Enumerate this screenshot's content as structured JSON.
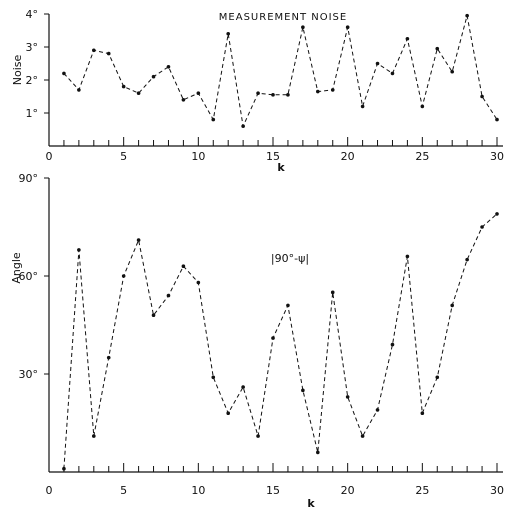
{
  "chart_data": [
    {
      "type": "line",
      "title": "MEASUREMENT NOISE",
      "ylabel": "Noise",
      "xlabel": "k",
      "xlim": [
        0,
        30
      ],
      "ylim": [
        0,
        4
      ],
      "x_ticks": [
        "0",
        "5",
        "10",
        "15",
        "20",
        "25",
        "30"
      ],
      "y_ticks": [
        "1°",
        "2°",
        "3°",
        "4°"
      ],
      "grid": false,
      "x": [
        1,
        2,
        3,
        4,
        5,
        6,
        7,
        8,
        9,
        10,
        11,
        12,
        13,
        14,
        15,
        16,
        17,
        18,
        19,
        20,
        21,
        22,
        23,
        24,
        25,
        26,
        27,
        28,
        29,
        30
      ],
      "series": [
        {
          "values": [
            2.2,
            1.7,
            2.9,
            2.8,
            1.8,
            1.6,
            2.1,
            2.4,
            1.4,
            1.6,
            0.8,
            3.4,
            0.6,
            1.6,
            1.55,
            1.55,
            3.6,
            1.65,
            1.7,
            3.6,
            1.2,
            2.5,
            2.2,
            3.25,
            1.2,
            2.95,
            2.25,
            3.95,
            1.5,
            0.8
          ]
        }
      ]
    },
    {
      "type": "line",
      "title": "",
      "annotation": "|90°-ψ|",
      "ylabel": "Angle",
      "xlabel": "k",
      "xlim": [
        0,
        30
      ],
      "ylim": [
        0,
        90
      ],
      "x_ticks": [
        "0",
        "5",
        "10",
        "15",
        "20",
        "25",
        "30"
      ],
      "y_ticks": [
        "30°",
        "60°",
        "90°"
      ],
      "grid": false,
      "x": [
        1,
        2,
        3,
        4,
        5,
        6,
        7,
        8,
        9,
        10,
        11,
        12,
        13,
        14,
        15,
        16,
        17,
        18,
        19,
        20,
        21,
        22,
        23,
        24,
        25,
        26,
        27,
        28,
        29,
        30
      ],
      "series": [
        {
          "values": [
            1,
            68,
            11,
            35,
            60,
            71,
            48,
            54,
            63,
            58,
            29,
            18,
            26,
            11,
            41,
            51,
            25,
            6,
            55,
            23,
            11,
            19,
            39,
            66,
            18,
            29,
            51,
            65,
            75,
            79
          ]
        }
      ]
    }
  ]
}
